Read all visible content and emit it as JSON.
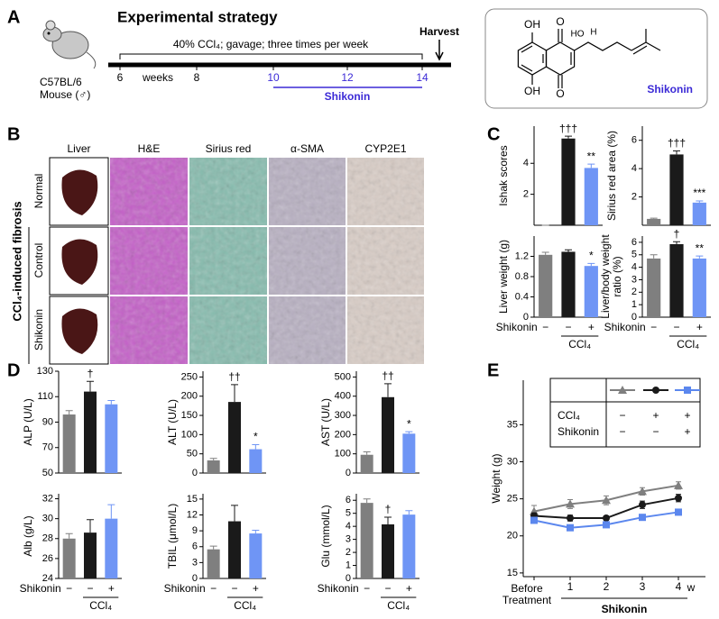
{
  "panel_a": {
    "label": "A",
    "title": "Experimental strategy",
    "strain": "C57BL/6",
    "animal": "Mouse (♂)",
    "treatment": "40% CCl₄; gavage; three times per week",
    "harvest": "Harvest",
    "timeline_ticks": [
      6,
      8,
      10,
      12,
      14
    ],
    "timeline_unit": "weeks",
    "drug": "Shikonin",
    "compound": {
      "name": "Shikonin",
      "atoms": [
        "OH",
        "O",
        "OH",
        "O",
        "HO",
        "H"
      ]
    }
  },
  "panel_b": {
    "label": "B",
    "columns": [
      "Liver",
      "H&E",
      "Sirius red",
      "α-SMA",
      "CYP2E1"
    ],
    "rows": [
      "Normal",
      "Control",
      "Shikonin"
    ],
    "group": "CCl₄-induced fibrosis"
  },
  "panel_c_label": "C",
  "panel_d_label": "D",
  "panel_e_label": "E",
  "group_axis": {
    "label": "Shikonin",
    "signs": [
      "−",
      "−",
      "+"
    ],
    "group": "CCl₄"
  },
  "chart_data": [
    {
      "type": "bar",
      "ylabel": "Ishak scores",
      "ylim": [
        0,
        6.4
      ],
      "yticks": [
        2,
        4
      ],
      "colors": [
        "#7f7f7f",
        "#1a1a1a",
        "#6f95f5"
      ],
      "values": [
        0,
        5.6,
        3.7
      ],
      "errors": [
        0,
        0.15,
        0.25
      ],
      "annotations": [
        null,
        "†††",
        "**"
      ]
    },
    {
      "type": "bar",
      "ylabel": "Sirius red area (%)",
      "ylim": [
        0,
        7
      ],
      "yticks": [
        2,
        4,
        6
      ],
      "colors": [
        "#7f7f7f",
        "#1a1a1a",
        "#6f95f5"
      ],
      "values": [
        0.45,
        5.0,
        1.6
      ],
      "errors": [
        0.05,
        0.25,
        0.12
      ],
      "annotations": [
        null,
        "†††",
        "***"
      ]
    },
    {
      "type": "bar",
      "ylabel": "Liver weight (g)",
      "ylim": [
        0,
        1.6
      ],
      "yticks": [
        0,
        0.4,
        0.8,
        1.2
      ],
      "colors": [
        "#7f7f7f",
        "#1a1a1a",
        "#6f95f5"
      ],
      "values": [
        1.23,
        1.29,
        1.01
      ],
      "errors": [
        0.05,
        0.04,
        0.05
      ],
      "annotations": [
        null,
        null,
        "*"
      ]
    },
    {
      "type": "bar",
      "ylabel": "Liver/body weight ratio (%)",
      "ylim": [
        0,
        6.5
      ],
      "yticks": [
        0,
        1,
        2,
        3,
        4,
        5,
        6
      ],
      "colors": [
        "#7f7f7f",
        "#1a1a1a",
        "#6f95f5"
      ],
      "values": [
        4.7,
        5.85,
        4.7
      ],
      "errors": [
        0.3,
        0.2,
        0.2
      ],
      "annotations": [
        null,
        "†",
        "**"
      ]
    },
    {
      "type": "bar",
      "ylabel": "ALP (U/L)",
      "ylim": [
        50,
        130
      ],
      "yticks": [
        50,
        70,
        90,
        110,
        130
      ],
      "colors": [
        "#7f7f7f",
        "#1a1a1a",
        "#6f95f5"
      ],
      "values": [
        96,
        114,
        104
      ],
      "errors": [
        3,
        8,
        3
      ],
      "annotations": [
        null,
        "†",
        null
      ]
    },
    {
      "type": "bar",
      "ylabel": "ALT (U/L)",
      "ylim": [
        0,
        265
      ],
      "yticks": [
        0,
        50,
        100,
        150,
        200,
        250
      ],
      "colors": [
        "#7f7f7f",
        "#1a1a1a",
        "#6f95f5"
      ],
      "values": [
        33,
        185,
        62
      ],
      "errors": [
        5,
        45,
        12
      ],
      "annotations": [
        null,
        "††",
        "*"
      ]
    },
    {
      "type": "bar",
      "ylabel": "AST (U/L)",
      "ylim": [
        0,
        530
      ],
      "yticks": [
        0,
        100,
        200,
        300,
        400,
        500
      ],
      "colors": [
        "#7f7f7f",
        "#1a1a1a",
        "#6f95f5"
      ],
      "values": [
        95,
        395,
        205
      ],
      "errors": [
        15,
        70,
        10
      ],
      "annotations": [
        null,
        "††",
        "*"
      ]
    },
    {
      "type": "bar",
      "ylabel": "Alb (g/L)",
      "ylim": [
        24,
        32.5
      ],
      "yticks": [
        24,
        26,
        28,
        30,
        32
      ],
      "colors": [
        "#7f7f7f",
        "#1a1a1a",
        "#6f95f5"
      ],
      "values": [
        28,
        28.6,
        30
      ],
      "errors": [
        0.5,
        1.3,
        1.4
      ],
      "annotations": [
        null,
        null,
        null
      ]
    },
    {
      "type": "bar",
      "ylabel": "TBIL (μmol/L)",
      "ylim": [
        0,
        16
      ],
      "yticks": [
        0,
        3,
        6,
        9,
        12,
        15
      ],
      "colors": [
        "#7f7f7f",
        "#1a1a1a",
        "#6f95f5"
      ],
      "values": [
        5.5,
        10.8,
        8.5
      ],
      "errors": [
        0.6,
        3,
        0.6
      ],
      "annotations": [
        null,
        null,
        null
      ]
    },
    {
      "type": "bar",
      "ylabel": "Glu (mmol/L)",
      "ylim": [
        0,
        6.5
      ],
      "yticks": [
        0,
        1,
        2,
        3,
        4,
        5,
        6
      ],
      "colors": [
        "#7f7f7f",
        "#1a1a1a",
        "#6f95f5"
      ],
      "values": [
        5.8,
        4.15,
        4.9
      ],
      "errors": [
        0.3,
        0.55,
        0.3
      ],
      "annotations": [
        null,
        "†",
        null
      ]
    },
    {
      "type": "line",
      "ylabel": "Weight (g)",
      "xlabel": "Shikonin",
      "x_unit": "w",
      "categories": [
        "Before Treatment",
        "1",
        "2",
        "3",
        "4"
      ],
      "ylim": [
        14.5,
        41
      ],
      "yticks": [
        15,
        20,
        25,
        30,
        35
      ],
      "series": [
        {
          "color": "#7f7f7f",
          "marker": "triangle",
          "values": [
            23.3,
            24.3,
            24.8,
            26.0,
            26.8
          ],
          "errors": [
            0.8,
            0.6,
            0.6,
            0.5,
            0.5
          ]
        },
        {
          "color": "#1a1a1a",
          "marker": "circle",
          "values": [
            22.7,
            22.4,
            22.4,
            24.2,
            25.1
          ],
          "errors": [
            0.4,
            0.4,
            0.3,
            0.5,
            0.5
          ]
        },
        {
          "color": "#5b87ee",
          "marker": "square",
          "values": [
            22.1,
            21.1,
            21.5,
            22.5,
            23.2
          ],
          "errors": [
            0.3,
            0.3,
            0.3,
            0.3,
            0.3
          ]
        }
      ],
      "legend": {
        "rows": [
          {
            "label": "CCl₄",
            "signs": [
              "−",
              "+",
              "+"
            ]
          },
          {
            "label": "Shikonin",
            "signs": [
              "−",
              "−",
              "+"
            ]
          }
        ]
      }
    }
  ]
}
